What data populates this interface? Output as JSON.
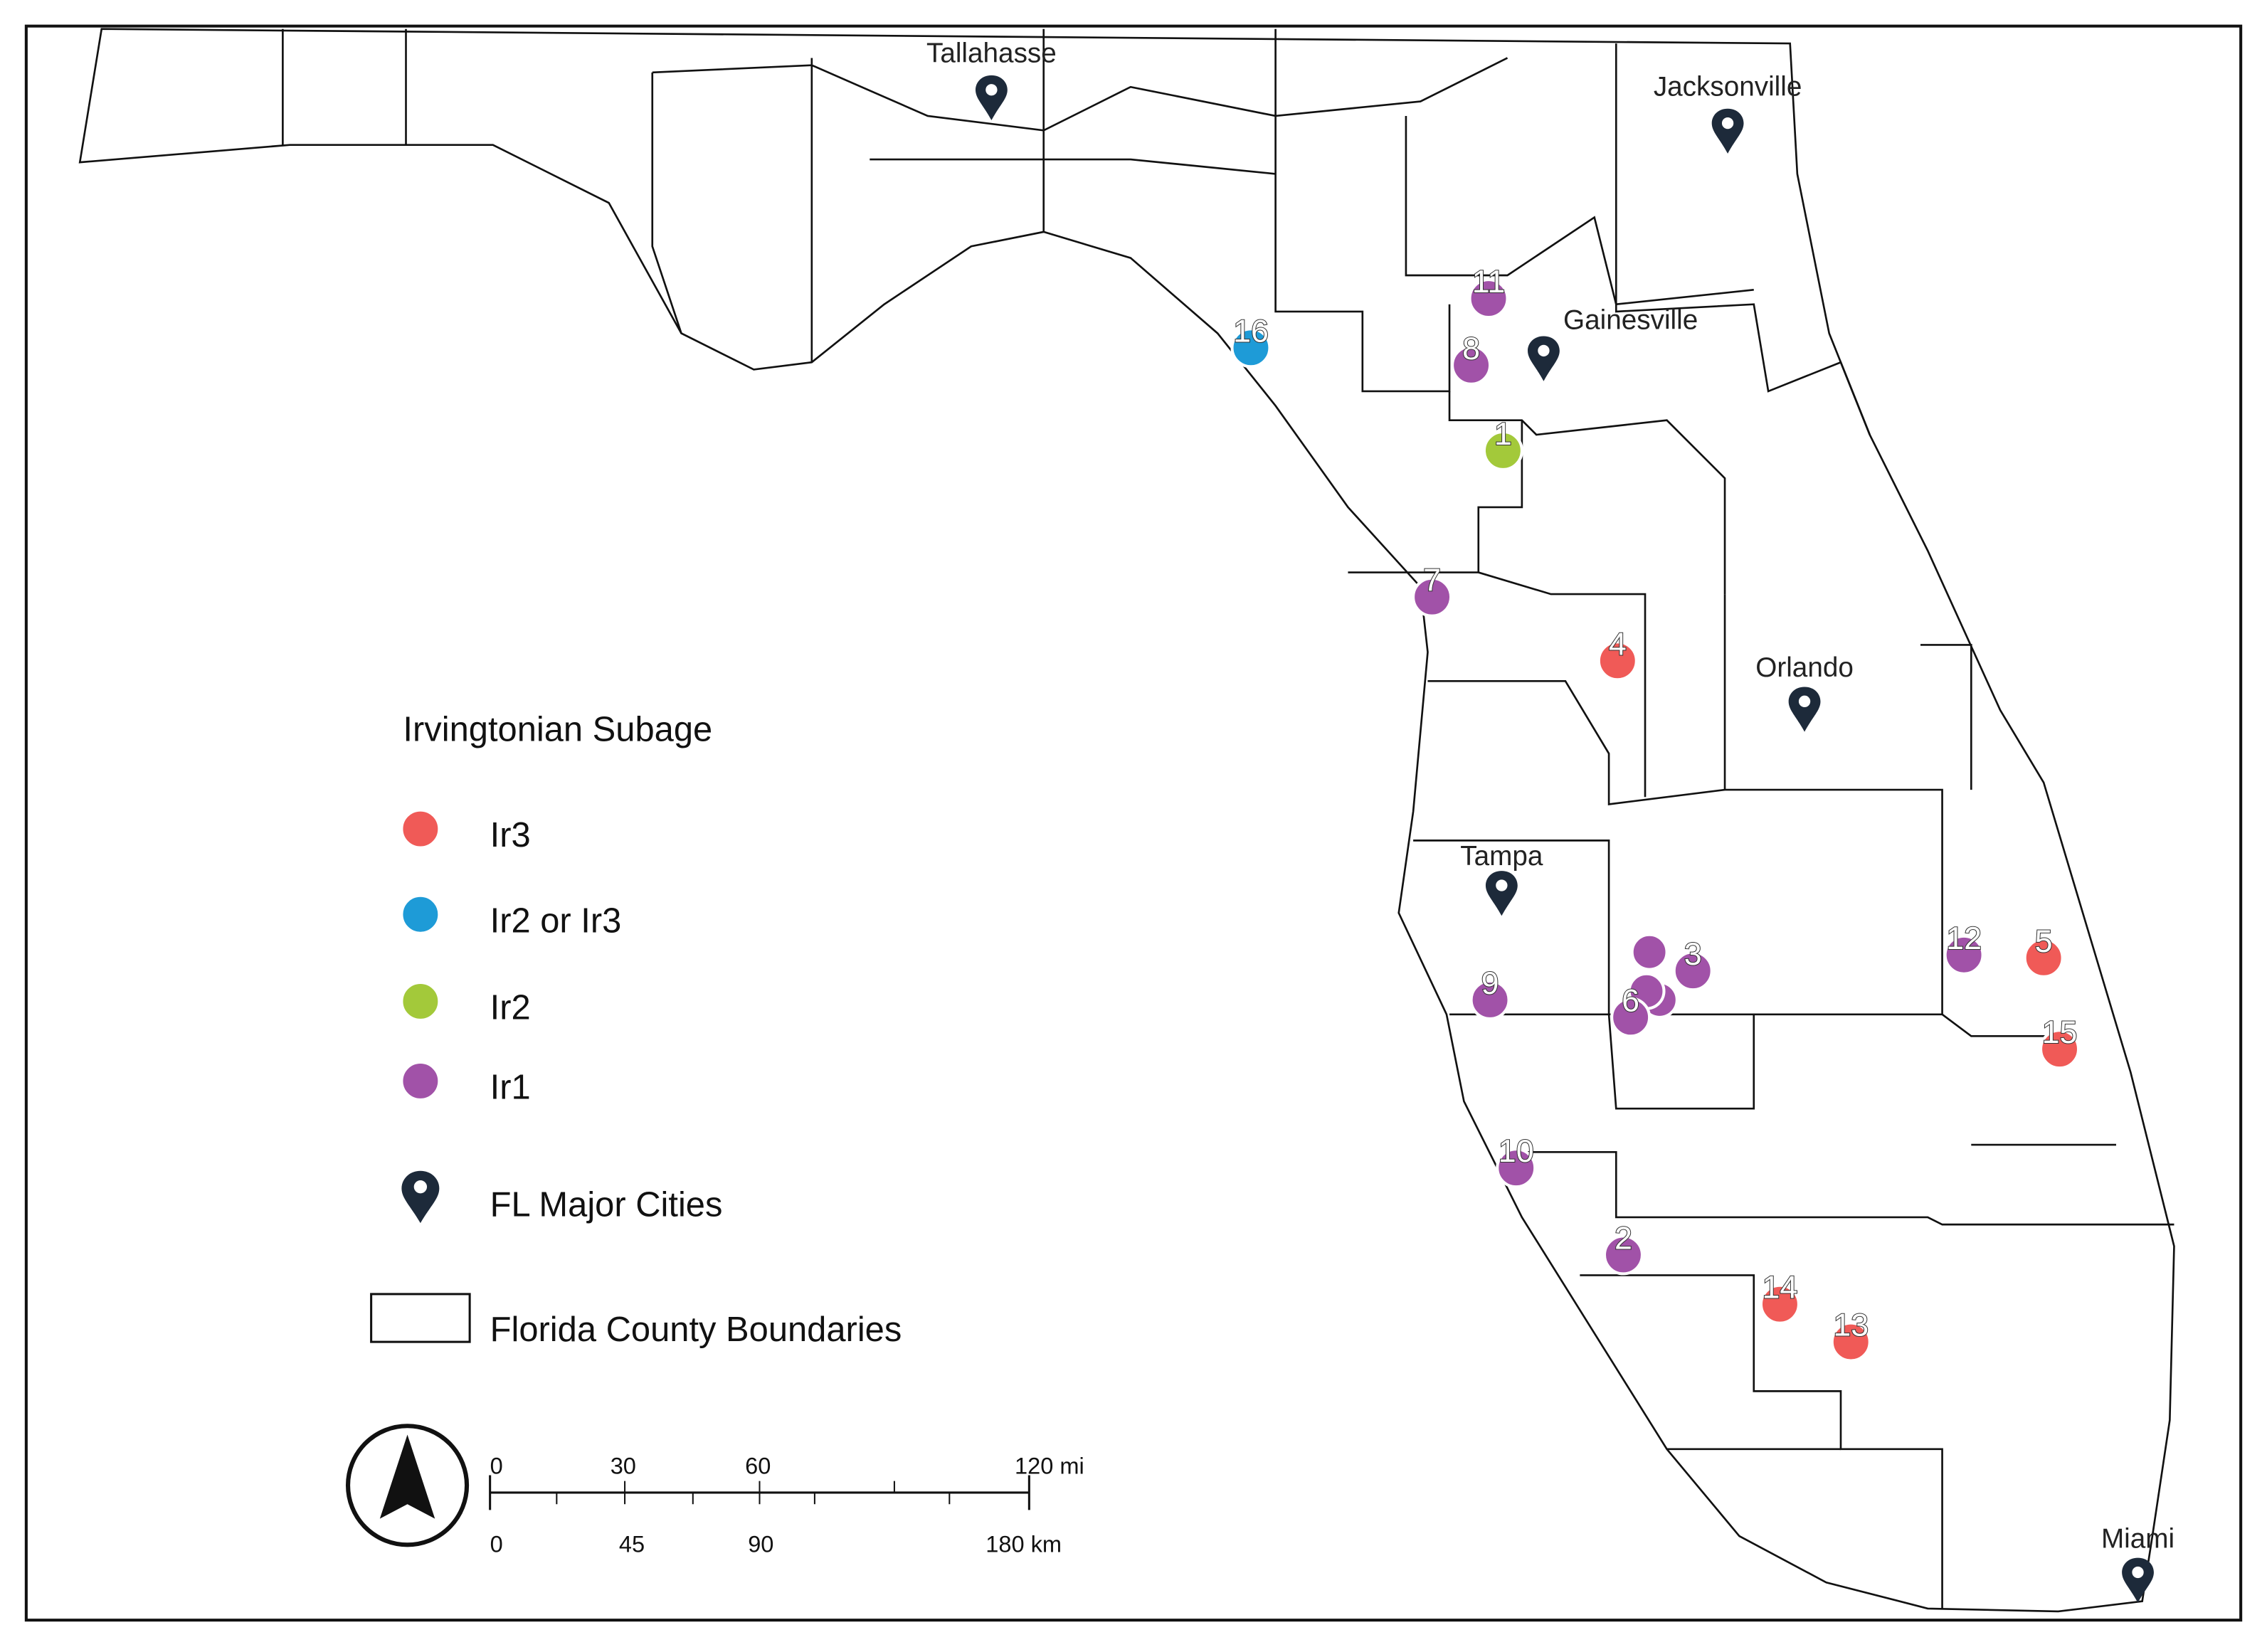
{
  "map": {
    "legend": {
      "title": "Irvingtonian Subage",
      "entries": [
        {
          "label": "Ir3",
          "color": "#f05a57"
        },
        {
          "label": "Ir2 or Ir3",
          "color": "#1e9bd7"
        },
        {
          "label": "Ir2",
          "color": "#a3c93a"
        },
        {
          "label": "Ir1",
          "color": "#a152a8"
        }
      ],
      "cities": "FL Major Cities",
      "counties": "Florida County Boundaries"
    },
    "cities": [
      "Tallahasse",
      "Jacksonville",
      "Gainesville",
      "Orlando",
      "Tampa",
      "Miami"
    ],
    "sites": [
      {
        "label": "1",
        "subage": "Ir2"
      },
      {
        "label": "2",
        "subage": "Ir1"
      },
      {
        "label": "3",
        "subage": "Ir1"
      },
      {
        "label": "4",
        "subage": "Ir3"
      },
      {
        "label": "5",
        "subage": "Ir3"
      },
      {
        "label": "6",
        "subage": "Ir1"
      },
      {
        "label": "7",
        "subage": "Ir1"
      },
      {
        "label": "8",
        "subage": "Ir1"
      },
      {
        "label": "9",
        "subage": "Ir1"
      },
      {
        "label": "10",
        "subage": "Ir1"
      },
      {
        "label": "11",
        "subage": "Ir1"
      },
      {
        "label": "12",
        "subage": "Ir1"
      },
      {
        "label": "13",
        "subage": "Ir3"
      },
      {
        "label": "14",
        "subage": "Ir3"
      },
      {
        "label": "15",
        "subage": "Ir3"
      },
      {
        "label": "16",
        "subage": "Ir2 or Ir3"
      }
    ],
    "scale_bar": {
      "miles": [
        "0",
        "30",
        "60",
        "120 mi"
      ],
      "km": [
        "0",
        "45",
        "90",
        "180 km"
      ]
    }
  }
}
